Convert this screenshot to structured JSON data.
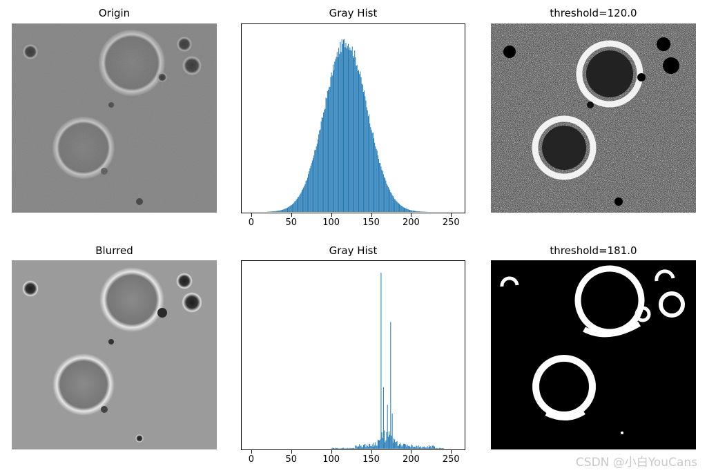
{
  "panels": [
    {
      "id": "origin",
      "title": "Origin"
    },
    {
      "id": "gray-hist-1",
      "title": "Gray Hist"
    },
    {
      "id": "threshold-1",
      "title": "threshold=120.0"
    },
    {
      "id": "blurred",
      "title": "Blurred"
    },
    {
      "id": "gray-hist-2",
      "title": "Gray Hist"
    },
    {
      "id": "threshold-2",
      "title": "threshold=181.0"
    }
  ],
  "watermark": "CSDN @小白YouCans",
  "chart_data": [
    {
      "type": "bar",
      "title": "Gray Hist",
      "xlim": [
        -12,
        267
      ],
      "xticks": [
        0,
        50,
        100,
        150,
        200,
        250
      ],
      "color": "#1f77b4",
      "distribution": {
        "shape": "gaussian",
        "center": 118,
        "sigma": 27,
        "peak_relative": 1.0,
        "range": [
          20,
          220
        ]
      }
    },
    {
      "type": "bar",
      "title": "Gray Hist",
      "xlim": [
        -12,
        267
      ],
      "xticks": [
        0,
        50,
        100,
        150,
        200,
        250
      ],
      "color": "#1f77b4",
      "peaks": [
        {
          "x": 162,
          "relative": 1.0
        },
        {
          "x": 174,
          "relative": 0.72
        },
        {
          "x": 165,
          "relative": 0.35
        },
        {
          "x": 170,
          "relative": 0.25
        },
        {
          "x": 176,
          "relative": 0.2
        }
      ],
      "distribution": {
        "shape": "spiky",
        "range": [
          100,
          240
        ]
      }
    }
  ]
}
